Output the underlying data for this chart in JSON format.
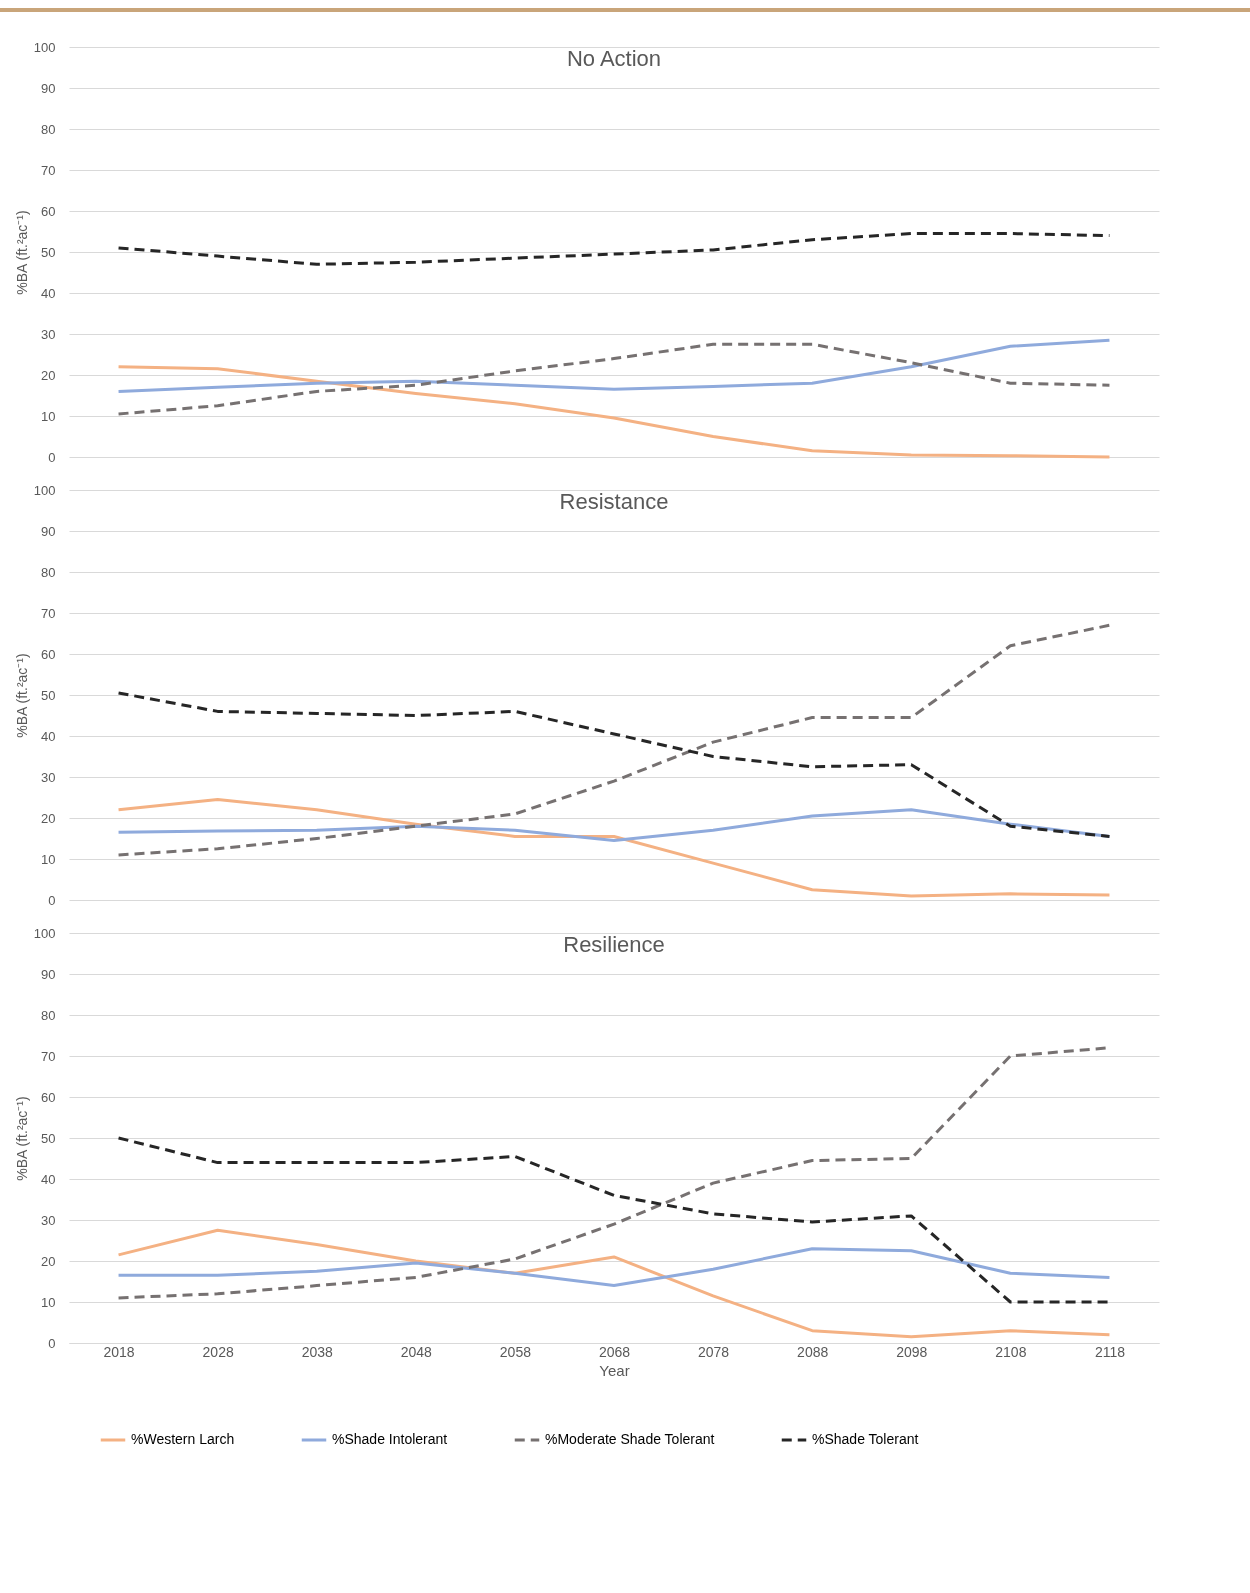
{
  "chart_data": [
    {
      "type": "line",
      "title": "No Action",
      "ylabel": "%BA (ft.²ac⁻¹)",
      "categories": [
        "2018",
        "2028",
        "2038",
        "2048",
        "2058",
        "2068",
        "2078",
        "2088",
        "2098",
        "2108",
        "2118"
      ],
      "ylim": [
        0,
        100
      ],
      "yticks": [
        0,
        10,
        20,
        30,
        40,
        50,
        60,
        70,
        80,
        90,
        100
      ],
      "grid": "y",
      "tick_labels": "y",
      "series": [
        {
          "color": "#f4b183",
          "line_style": "solid",
          "values": [
            22,
            21.5,
            18.5,
            15.5,
            13,
            9.5,
            5,
            1.5,
            0.5,
            0.3,
            0
          ]
        },
        {
          "color": "#8faadc",
          "line_style": "solid",
          "values": [
            16,
            17,
            18,
            18.5,
            17.5,
            16.5,
            17.2,
            18,
            22,
            27,
            28.5
          ]
        },
        {
          "color": "#767171",
          "line_style": "dashed",
          "values": [
            10.5,
            12.5,
            16,
            17.5,
            21,
            24,
            27.5,
            27.5,
            23,
            18,
            17.5
          ]
        },
        {
          "color": "#262626",
          "line_style": "dashed",
          "values": [
            51,
            49,
            47,
            47.5,
            48.5,
            49.5,
            50.5,
            53,
            54.5,
            54.5,
            54
          ]
        }
      ]
    },
    {
      "type": "line",
      "title": "Resistance",
      "ylabel": "%BA (ft.²ac⁻¹)",
      "categories": [
        "2018",
        "2028",
        "2038",
        "2048",
        "2058",
        "2068",
        "2078",
        "2088",
        "2098",
        "2108",
        "2118"
      ],
      "ylim": [
        0,
        100
      ],
      "yticks": [
        0,
        10,
        20,
        30,
        40,
        50,
        60,
        70,
        80,
        90,
        100
      ],
      "grid": "y",
      "tick_labels": "y",
      "series": [
        {
          "color": "#f4b183",
          "line_style": "solid",
          "values": [
            22,
            24.5,
            22,
            18.5,
            15.5,
            15.5,
            9,
            2.5,
            1,
            1.5,
            1.2
          ]
        },
        {
          "color": "#8faadc",
          "line_style": "solid",
          "values": [
            16.5,
            16.8,
            17,
            18,
            17,
            14.5,
            17,
            20.5,
            22,
            18.5,
            15.5
          ]
        },
        {
          "color": "#767171",
          "line_style": "dashed",
          "values": [
            11,
            12.5,
            15,
            18,
            21,
            29,
            38.5,
            44.5,
            44.5,
            62,
            67
          ]
        },
        {
          "color": "#262626",
          "line_style": "dashed",
          "values": [
            50.5,
            46,
            45.5,
            45,
            46,
            40.5,
            35,
            32.5,
            33,
            18,
            15.5
          ]
        }
      ]
    },
    {
      "type": "line",
      "title": "Resilience",
      "xlabel": "Year",
      "ylabel": "%BA (ft.²ac⁻¹)",
      "categories": [
        "2018",
        "2028",
        "2038",
        "2048",
        "2058",
        "2068",
        "2078",
        "2088",
        "2098",
        "2108",
        "2118"
      ],
      "ylim": [
        0,
        100
      ],
      "yticks": [
        0,
        10,
        20,
        30,
        40,
        50,
        60,
        70,
        80,
        90,
        100
      ],
      "grid": "y",
      "legend": "bottom",
      "series": [
        {
          "name": "%Western Larch",
          "color": "#f4b183",
          "line_style": "solid",
          "values": [
            21.5,
            27.5,
            24,
            20,
            17,
            21,
            11.5,
            3,
            1.5,
            3,
            2
          ]
        },
        {
          "name": "%Shade Intolerant",
          "color": "#8faadc",
          "line_style": "solid",
          "values": [
            16.5,
            16.5,
            17.5,
            19.5,
            17,
            14,
            18,
            23,
            22.5,
            17,
            16
          ]
        },
        {
          "name": "%Moderate Shade Tolerant",
          "color": "#767171",
          "line_style": "dashed",
          "values": [
            11,
            12,
            14,
            16,
            20.5,
            29,
            39,
            44.5,
            45,
            70,
            72
          ]
        },
        {
          "name": "%Shade Tolerant",
          "color": "#262626",
          "line_style": "dashed",
          "values": [
            50,
            44,
            44,
            44,
            45.5,
            36,
            31.5,
            29.5,
            31,
            10,
            10
          ]
        }
      ]
    }
  ]
}
